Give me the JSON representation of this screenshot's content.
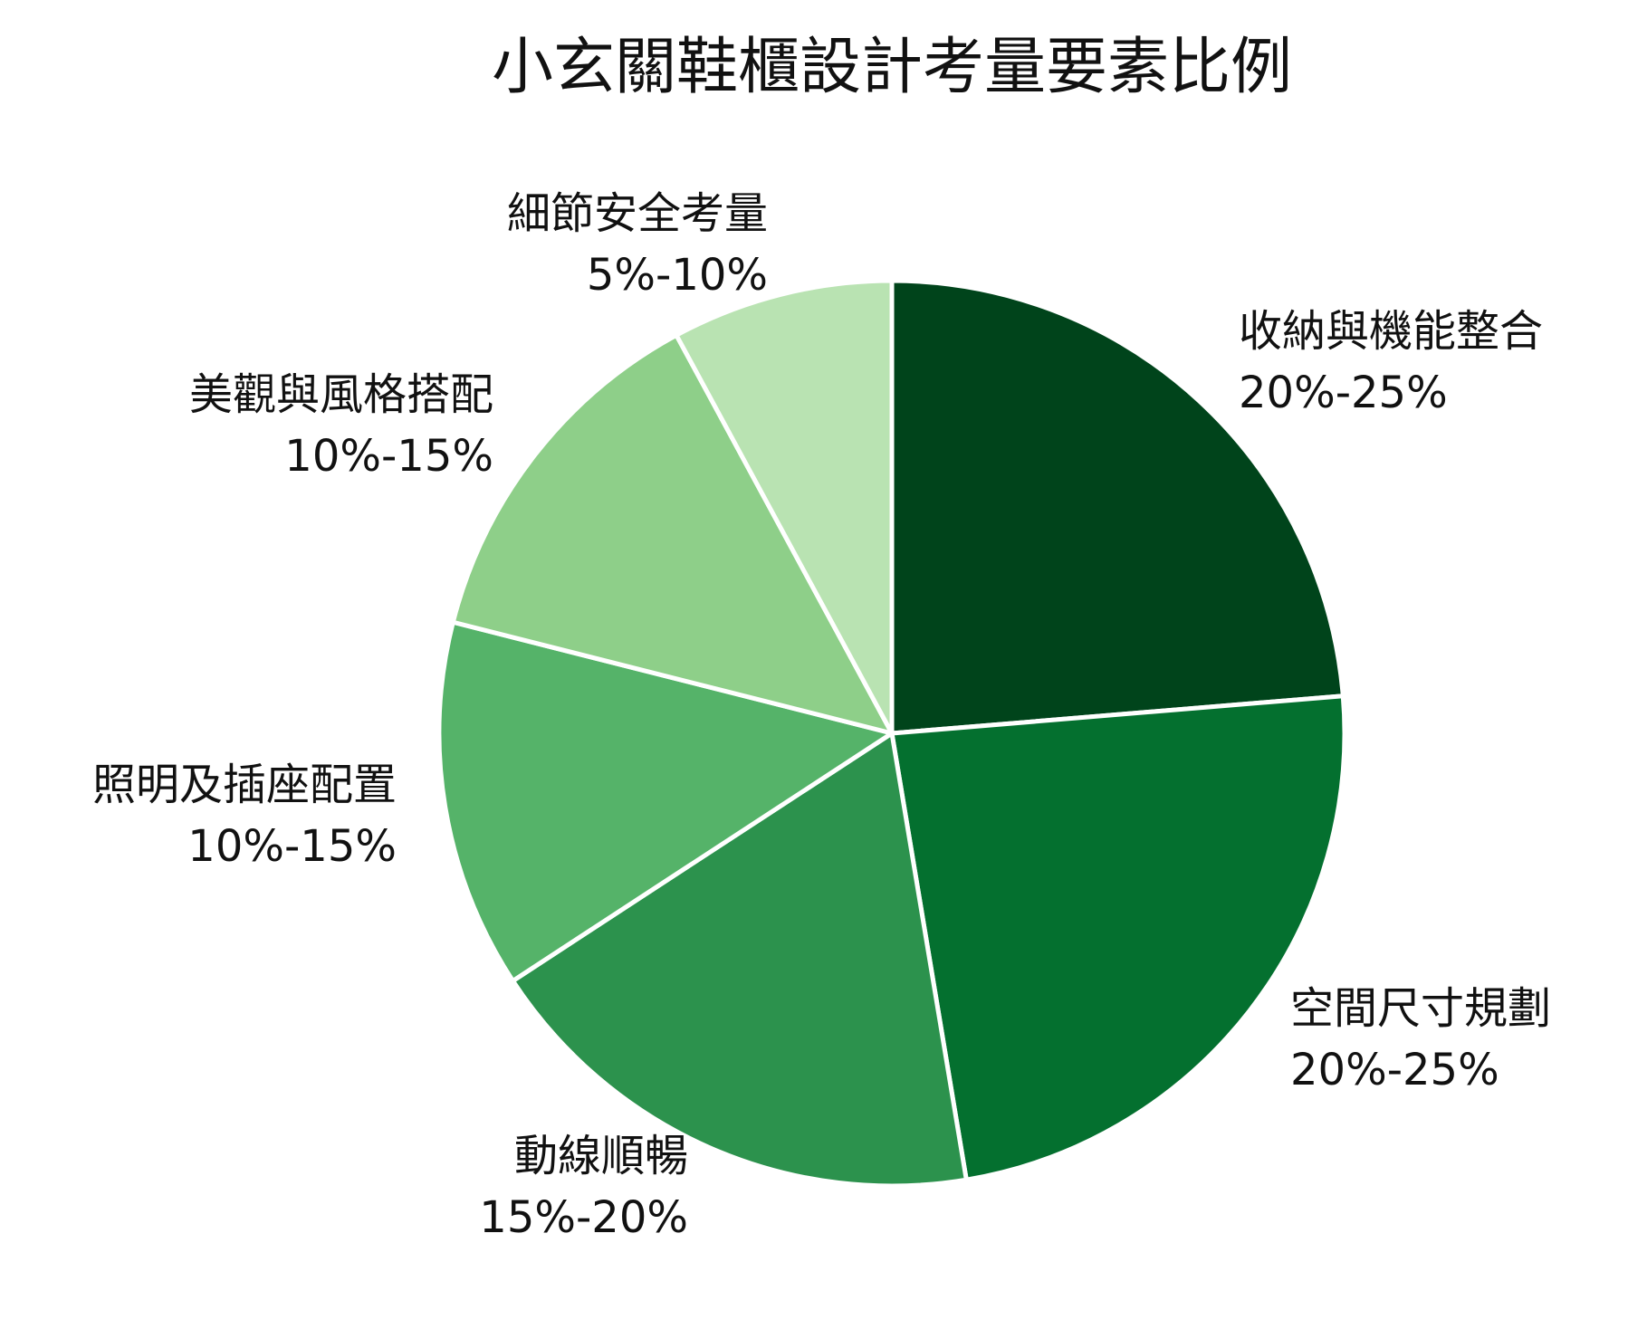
{
  "chart_data": {
    "type": "pie",
    "title": "小玄關鞋櫃設計考量要素比例",
    "legend": "none",
    "slices": [
      {
        "label": "收納與機能整合",
        "range_text": "20%-25%",
        "value": 22.5,
        "color": "#00441b"
      },
      {
        "label": "空間尺寸規劃",
        "range_text": "20%-25%",
        "value": 22.5,
        "color": "#04702f"
      },
      {
        "label": "動線順暢",
        "range_text": "15%-20%",
        "value": 17.5,
        "color": "#2c924d"
      },
      {
        "label": "照明及插座配置",
        "range_text": "10%-15%",
        "value": 12.5,
        "color": "#55b369"
      },
      {
        "label": "美觀與風格搭配",
        "range_text": "10%-15%",
        "value": 12.5,
        "color": "#8ecf89"
      },
      {
        "label": "細節安全考量",
        "range_text": "5%-10%",
        "value": 7.5,
        "color": "#b9e3b2"
      }
    ]
  }
}
